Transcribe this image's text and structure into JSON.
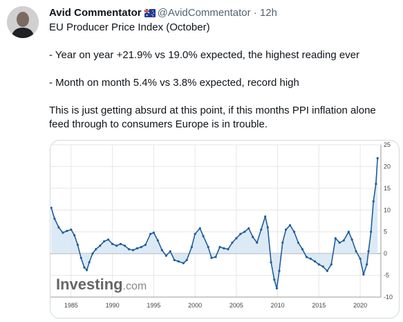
{
  "author": {
    "name": "Avid Commentator",
    "handle": "@AvidCommentator",
    "separator": "·",
    "time": "12h",
    "flag_icon": "australia-flag-icon"
  },
  "tweet": {
    "line1": "EU Producer Price Index (October)",
    "line2": "- Year on year +21.9% vs 19.0% expected, the highest reading ever",
    "line3": "- Month on month 5.4% vs 3.8% expected, record high",
    "line4": "This is just getting absurd at this point, if this months PPI inflation alone",
    "line5": "feed through to consumers Europe is in trouble."
  },
  "colors": {
    "series": "#1f5c99",
    "fill": "#d6e6f5",
    "grid": "#e6e6e6",
    "zero": "#9a9a9a"
  },
  "chart_data": {
    "type": "area",
    "watermark": {
      "brand": "Investing",
      "suffix": ".com"
    },
    "xlim": [
      1982.5,
      2022.5
    ],
    "ylim": [
      -10,
      25
    ],
    "yticks": [
      25,
      20,
      15,
      10,
      5,
      0,
      -5,
      -10
    ],
    "xticks": [
      1985,
      1990,
      1995,
      2000,
      2005,
      2010,
      2015,
      2020
    ],
    "y_axis_position": "right",
    "grid": true,
    "series": [
      {
        "points": [
          [
            1982.6,
            10.5
          ],
          [
            1983.0,
            8.0
          ],
          [
            1983.5,
            6.0
          ],
          [
            1984.0,
            4.8
          ],
          [
            1984.5,
            5.2
          ],
          [
            1985.0,
            5.5
          ],
          [
            1985.4,
            4.2
          ],
          [
            1985.8,
            2.0
          ],
          [
            1986.2,
            -1.0
          ],
          [
            1986.6,
            -3.2
          ],
          [
            1986.9,
            -3.8
          ],
          [
            1987.2,
            -2.0
          ],
          [
            1987.6,
            0.0
          ],
          [
            1988.0,
            1.0
          ],
          [
            1988.5,
            1.8
          ],
          [
            1989.0,
            2.8
          ],
          [
            1989.5,
            3.2
          ],
          [
            1990.0,
            2.2
          ],
          [
            1990.5,
            1.8
          ],
          [
            1991.0,
            2.2
          ],
          [
            1991.5,
            1.8
          ],
          [
            1992.0,
            1.0
          ],
          [
            1992.5,
            0.8
          ],
          [
            1993.0,
            1.2
          ],
          [
            1993.5,
            1.5
          ],
          [
            1994.0,
            2.0
          ],
          [
            1994.6,
            4.5
          ],
          [
            1995.0,
            4.8
          ],
          [
            1995.5,
            3.0
          ],
          [
            1996.0,
            0.8
          ],
          [
            1996.5,
            -0.5
          ],
          [
            1997.0,
            0.5
          ],
          [
            1997.5,
            -1.5
          ],
          [
            1998.0,
            -1.8
          ],
          [
            1998.6,
            -2.2
          ],
          [
            1999.0,
            -1.5
          ],
          [
            1999.6,
            1.5
          ],
          [
            2000.0,
            4.5
          ],
          [
            2000.6,
            5.8
          ],
          [
            2001.0,
            4.0
          ],
          [
            2001.6,
            1.5
          ],
          [
            2002.0,
            -1.0
          ],
          [
            2002.5,
            -0.8
          ],
          [
            2003.0,
            1.5
          ],
          [
            2003.5,
            1.2
          ],
          [
            2004.0,
            1.0
          ],
          [
            2004.5,
            2.5
          ],
          [
            2005.0,
            3.5
          ],
          [
            2005.5,
            4.5
          ],
          [
            2006.0,
            5.0
          ],
          [
            2006.5,
            5.8
          ],
          [
            2007.0,
            3.8
          ],
          [
            2007.5,
            2.5
          ],
          [
            2008.0,
            5.5
          ],
          [
            2008.5,
            8.5
          ],
          [
            2008.8,
            6.0
          ],
          [
            2009.2,
            -2.0
          ],
          [
            2009.6,
            -6.0
          ],
          [
            2009.9,
            -8.0
          ],
          [
            2010.2,
            -4.0
          ],
          [
            2010.6,
            2.5
          ],
          [
            2011.0,
            5.5
          ],
          [
            2011.5,
            6.5
          ],
          [
            2012.0,
            5.0
          ],
          [
            2012.5,
            2.5
          ],
          [
            2013.0,
            1.0
          ],
          [
            2013.5,
            -0.8
          ],
          [
            2014.0,
            -1.2
          ],
          [
            2014.5,
            -1.8
          ],
          [
            2015.0,
            -2.5
          ],
          [
            2015.5,
            -3.0
          ],
          [
            2016.0,
            -4.0
          ],
          [
            2016.5,
            -2.5
          ],
          [
            2017.0,
            3.5
          ],
          [
            2017.5,
            2.5
          ],
          [
            2018.0,
            3.0
          ],
          [
            2018.6,
            5.0
          ],
          [
            2019.0,
            3.2
          ],
          [
            2019.5,
            0.5
          ],
          [
            2020.0,
            -1.2
          ],
          [
            2020.4,
            -4.8
          ],
          [
            2020.8,
            -2.5
          ],
          [
            2021.0,
            0.5
          ],
          [
            2021.3,
            5.0
          ],
          [
            2021.6,
            12.0
          ],
          [
            2021.9,
            16.0
          ],
          [
            2022.1,
            21.9
          ]
        ]
      }
    ]
  }
}
